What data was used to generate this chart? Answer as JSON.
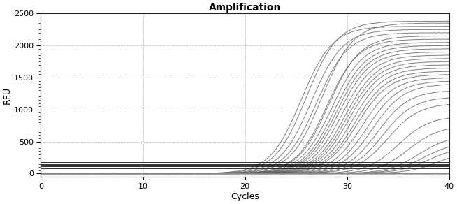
{
  "title": "Amplification",
  "xlabel": "Cycles",
  "ylabel": "RFU",
  "xlim": [
    0,
    40
  ],
  "ylim": [
    -50,
    2500
  ],
  "yticks": [
    0,
    500,
    1000,
    1500,
    2000,
    2500
  ],
  "xticks": [
    0,
    10,
    20,
    30,
    40
  ],
  "background_color": "#ffffff",
  "grid_color": "#999999",
  "hlines": [
    80,
    110,
    140,
    165
  ],
  "hline_color": "#111111",
  "n_curves": 30,
  "curve_midpoints": [
    25.5,
    26.0,
    26.5,
    27.0,
    27.5,
    28.0,
    28.2,
    28.5,
    28.8,
    29.0,
    29.2,
    29.5,
    29.8,
    30.0,
    30.2,
    30.5,
    30.8,
    31.0,
    31.5,
    32.0,
    32.5,
    33.0,
    33.5,
    34.0,
    35.0,
    36.0,
    37.0,
    37.5,
    38.0,
    39.0
  ],
  "curve_plateaus": [
    2300,
    2380,
    2250,
    2200,
    2350,
    2100,
    2150,
    2050,
    2000,
    1950,
    1900,
    1850,
    1800,
    1750,
    1700,
    1650,
    1600,
    1550,
    1500,
    1450,
    1400,
    1300,
    1200,
    1100,
    900,
    750,
    600,
    500,
    430,
    370
  ],
  "curve_steepness": 0.65,
  "curve_color": "#555555",
  "curve_alpha": 0.75,
  "curve_lw": 0.7,
  "flat_levels": [
    -5,
    0,
    3,
    -8,
    5,
    -3,
    2,
    -6,
    4,
    -2,
    1,
    -4,
    6,
    -1,
    3
  ],
  "flat_color": "#888888",
  "flat_alpha": 0.55,
  "flat_lw": 0.5
}
